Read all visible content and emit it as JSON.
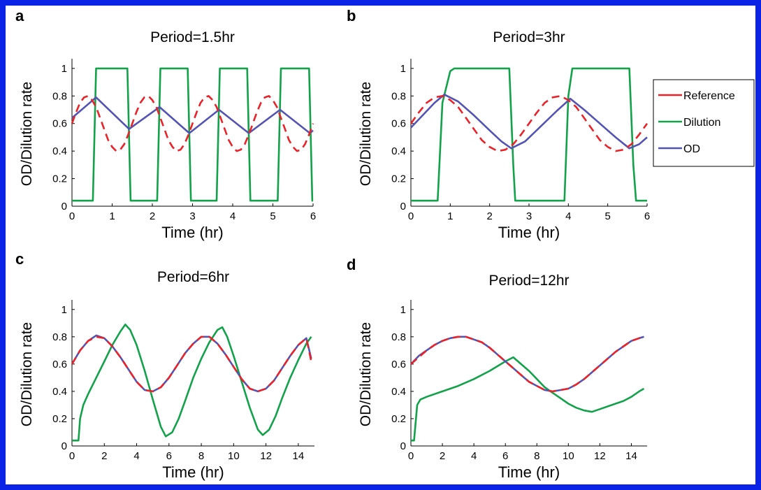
{
  "colors": {
    "border": "#0b23e6",
    "reference": "#e8232a",
    "dilution": "#12a24a",
    "od": "#5353b3"
  },
  "legend": [
    {
      "name": "Reference",
      "color": "#e8232a",
      "dashed": false
    },
    {
      "name": "Dilution",
      "color": "#12a24a",
      "dashed": false
    },
    {
      "name": "OD",
      "color": "#5353b3",
      "dashed": false
    }
  ],
  "chart_data": [
    {
      "letter": "a",
      "title": "Period=1.5hr",
      "type": "line",
      "xlabel": "Time  (hr)",
      "ylabel": "OD/Dilution rate",
      "xlim": [
        0,
        6
      ],
      "ylim": [
        0,
        1.05
      ],
      "xticks": [
        0,
        1,
        2,
        3,
        4,
        5,
        6
      ],
      "yticks": [
        0,
        0.2,
        0.4,
        0.6,
        0.8,
        1
      ],
      "series": [
        {
          "name": "Reference",
          "style": "dashed",
          "x": [
            0,
            0.1,
            0.2,
            0.3,
            0.4,
            0.5,
            0.6,
            0.7,
            0.8,
            0.9,
            1,
            1.1,
            1.2,
            1.3,
            1.4,
            1.5,
            1.6,
            1.7,
            1.8,
            1.9,
            2,
            2.1,
            2.2,
            2.3,
            2.4,
            2.5,
            2.6,
            2.7,
            2.8,
            2.9,
            3,
            3.1,
            3.2,
            3.3,
            3.4,
            3.5,
            3.6,
            3.7,
            3.8,
            3.9,
            4,
            4.1,
            4.2,
            4.3,
            4.4,
            4.5,
            4.6,
            4.7,
            4.8,
            4.9,
            5,
            5.1,
            5.2,
            5.3,
            5.4,
            5.5,
            5.6,
            5.7,
            5.8,
            5.9,
            6
          ],
          "y": [
            0.6,
            0.68,
            0.75,
            0.79,
            0.8,
            0.77,
            0.72,
            0.64,
            0.56,
            0.48,
            0.43,
            0.4,
            0.41,
            0.45,
            0.52,
            0.6,
            0.68,
            0.75,
            0.79,
            0.8,
            0.77,
            0.72,
            0.64,
            0.56,
            0.48,
            0.43,
            0.4,
            0.41,
            0.45,
            0.52,
            0.6,
            0.68,
            0.75,
            0.79,
            0.8,
            0.77,
            0.72,
            0.64,
            0.56,
            0.48,
            0.43,
            0.4,
            0.41,
            0.45,
            0.52,
            0.6,
            0.68,
            0.75,
            0.79,
            0.8,
            0.77,
            0.72,
            0.64,
            0.56,
            0.48,
            0.43,
            0.4,
            0.41,
            0.45,
            0.52,
            0.6
          ]
        },
        {
          "name": "Dilution",
          "style": "solid",
          "x": [
            0,
            0.52,
            0.6,
            1.38,
            1.46,
            2.12,
            2.2,
            2.88,
            2.96,
            3.6,
            3.68,
            4.36,
            4.44,
            5.12,
            5.2,
            5.9,
            5.98,
            6
          ],
          "y": [
            0.04,
            0.04,
            1,
            1,
            0.04,
            0.04,
            1,
            1,
            0.04,
            0.04,
            1,
            1,
            0.04,
            0.04,
            1,
            1,
            0.04,
            0.04
          ]
        },
        {
          "name": "OD",
          "style": "solid",
          "x": [
            0,
            0.6,
            1.42,
            2.18,
            2.92,
            3.66,
            4.4,
            5.18,
            5.92,
            6
          ],
          "y": [
            0.64,
            0.79,
            0.56,
            0.72,
            0.53,
            0.7,
            0.53,
            0.7,
            0.53,
            0.55
          ]
        }
      ]
    },
    {
      "letter": "b",
      "title": "Period=3hr",
      "type": "line",
      "xlabel": "Time  (hr)",
      "ylabel": "OD/Dilution rate",
      "xlim": [
        0,
        6
      ],
      "ylim": [
        0,
        1.05
      ],
      "xticks": [
        0,
        1,
        2,
        3,
        4,
        5,
        6
      ],
      "yticks": [
        0,
        0.2,
        0.4,
        0.6,
        0.8,
        1
      ],
      "series": [
        {
          "name": "Reference",
          "style": "dashed",
          "x": [
            0,
            0.2,
            0.4,
            0.6,
            0.8,
            1,
            1.2,
            1.4,
            1.6,
            1.8,
            2,
            2.2,
            2.4,
            2.6,
            2.8,
            3,
            3.2,
            3.4,
            3.6,
            3.8,
            4,
            4.2,
            4.4,
            4.6,
            4.8,
            5,
            5.2,
            5.4,
            5.6,
            5.8,
            6
          ],
          "y": [
            0.6,
            0.68,
            0.75,
            0.79,
            0.8,
            0.77,
            0.72,
            0.64,
            0.56,
            0.48,
            0.43,
            0.4,
            0.41,
            0.45,
            0.52,
            0.6,
            0.68,
            0.75,
            0.79,
            0.8,
            0.77,
            0.72,
            0.64,
            0.56,
            0.48,
            0.43,
            0.4,
            0.41,
            0.45,
            0.52,
            0.6
          ]
        },
        {
          "name": "Dilution",
          "style": "solid",
          "x": [
            0,
            0.68,
            0.8,
            1,
            1.1,
            2.5,
            2.6,
            2.65,
            3.9,
            4,
            4.1,
            5.55,
            5.65,
            5.72,
            6
          ],
          "y": [
            0.04,
            0.04,
            0.75,
            0.98,
            1,
            1,
            0.3,
            0.04,
            0.04,
            0.8,
            1,
            1,
            0.3,
            0.04,
            0.04
          ]
        },
        {
          "name": "OD",
          "style": "solid",
          "x": [
            0,
            0.3,
            0.6,
            0.85,
            1.2,
            1.6,
            2,
            2.3,
            2.55,
            2.9,
            3.3,
            3.7,
            4.05,
            4.4,
            4.8,
            5.2,
            5.55,
            5.8,
            6
          ],
          "y": [
            0.57,
            0.66,
            0.75,
            0.81,
            0.76,
            0.66,
            0.55,
            0.47,
            0.42,
            0.47,
            0.58,
            0.69,
            0.78,
            0.7,
            0.6,
            0.5,
            0.42,
            0.45,
            0.5
          ]
        }
      ]
    },
    {
      "letter": "c",
      "title": "Period=6hr",
      "type": "line",
      "xlabel": "Time  (hr)",
      "ylabel": "OD/Dilution rate",
      "xlim": [
        0,
        15
      ],
      "ylim": [
        0,
        1.05
      ],
      "xticks": [
        0,
        2,
        4,
        6,
        8,
        10,
        12,
        14
      ],
      "yticks": [
        0,
        0.2,
        0.4,
        0.6,
        0.8,
        1
      ],
      "series": [
        {
          "name": "Reference",
          "style": "dashed",
          "x": [
            0,
            0.5,
            1,
            1.5,
            2,
            2.5,
            3,
            3.5,
            4,
            4.5,
            5,
            5.5,
            6,
            6.5,
            7,
            7.5,
            8,
            8.5,
            9,
            9.5,
            10,
            10.5,
            11,
            11.5,
            12,
            12.5,
            13,
            13.5,
            14,
            14.5,
            14.8
          ],
          "y": [
            0.6,
            0.7,
            0.77,
            0.8,
            0.79,
            0.73,
            0.65,
            0.56,
            0.47,
            0.41,
            0.4,
            0.43,
            0.5,
            0.59,
            0.68,
            0.75,
            0.8,
            0.8,
            0.75,
            0.67,
            0.58,
            0.49,
            0.42,
            0.4,
            0.42,
            0.48,
            0.57,
            0.66,
            0.74,
            0.79,
            0.62
          ]
        },
        {
          "name": "Dilution",
          "style": "solid",
          "x": [
            0,
            0.4,
            0.5,
            0.7,
            1,
            1.5,
            2,
            2.5,
            3,
            3.3,
            3.6,
            4,
            4.5,
            5,
            5.5,
            5.8,
            6.2,
            6.6,
            7,
            7.5,
            8,
            8.5,
            9,
            9.3,
            9.6,
            10,
            10.5,
            11,
            11.5,
            11.8,
            12.2,
            12.6,
            13,
            13.5,
            14,
            14.5,
            14.8
          ],
          "y": [
            0.04,
            0.04,
            0.2,
            0.3,
            0.38,
            0.5,
            0.62,
            0.74,
            0.84,
            0.89,
            0.85,
            0.74,
            0.55,
            0.34,
            0.14,
            0.07,
            0.1,
            0.2,
            0.33,
            0.5,
            0.64,
            0.76,
            0.85,
            0.87,
            0.8,
            0.66,
            0.47,
            0.28,
            0.12,
            0.08,
            0.12,
            0.22,
            0.35,
            0.5,
            0.63,
            0.75,
            0.8
          ]
        },
        {
          "name": "OD",
          "style": "solid",
          "x": [
            0,
            0.5,
            1,
            1.5,
            2,
            2.5,
            3,
            3.5,
            4,
            4.5,
            5,
            5.5,
            6,
            6.5,
            7,
            7.5,
            8,
            8.5,
            9,
            9.5,
            10,
            10.5,
            11,
            11.5,
            12,
            12.5,
            13,
            13.5,
            14,
            14.5,
            14.8
          ],
          "y": [
            0.6,
            0.7,
            0.77,
            0.81,
            0.79,
            0.73,
            0.65,
            0.56,
            0.47,
            0.41,
            0.4,
            0.43,
            0.5,
            0.59,
            0.68,
            0.75,
            0.8,
            0.8,
            0.75,
            0.67,
            0.58,
            0.49,
            0.42,
            0.4,
            0.42,
            0.48,
            0.57,
            0.66,
            0.74,
            0.79,
            0.64
          ]
        }
      ]
    },
    {
      "letter": "d",
      "title": "Period=12hr",
      "type": "line",
      "xlabel": "Time  (hr)",
      "ylabel": "OD/Dilution rate",
      "xlim": [
        0,
        15
      ],
      "ylim": [
        0,
        1.05
      ],
      "xticks": [
        0,
        2,
        4,
        6,
        8,
        10,
        12,
        14
      ],
      "yticks": [
        0,
        0.2,
        0.4,
        0.6,
        0.8,
        1
      ],
      "series": [
        {
          "name": "Reference",
          "style": "dashed",
          "x": [
            0,
            0.5,
            1,
            1.5,
            2,
            2.5,
            3,
            3.5,
            4,
            4.5,
            5,
            5.5,
            6,
            6.5,
            7,
            7.5,
            8,
            8.5,
            9,
            9.5,
            10,
            10.5,
            11,
            11.5,
            12,
            12.5,
            13,
            13.5,
            14,
            14.5,
            14.8
          ],
          "y": [
            0.6,
            0.65,
            0.7,
            0.74,
            0.77,
            0.79,
            0.8,
            0.8,
            0.78,
            0.76,
            0.72,
            0.67,
            0.62,
            0.57,
            0.52,
            0.47,
            0.44,
            0.41,
            0.4,
            0.41,
            0.42,
            0.45,
            0.49,
            0.54,
            0.59,
            0.64,
            0.69,
            0.73,
            0.77,
            0.79,
            0.8
          ]
        },
        {
          "name": "Dilution",
          "style": "solid",
          "x": [
            0,
            0.2,
            0.4,
            0.6,
            1,
            2,
            3,
            4,
            5,
            6,
            6.5,
            7,
            7.5,
            8,
            8.5,
            9,
            9.5,
            10,
            10.5,
            11,
            11.5,
            12,
            12.5,
            13,
            13.5,
            14,
            14.5,
            14.8
          ],
          "y": [
            0.04,
            0.04,
            0.3,
            0.34,
            0.36,
            0.4,
            0.44,
            0.49,
            0.55,
            0.62,
            0.65,
            0.6,
            0.55,
            0.49,
            0.43,
            0.39,
            0.35,
            0.31,
            0.28,
            0.26,
            0.25,
            0.27,
            0.29,
            0.31,
            0.33,
            0.36,
            0.4,
            0.42
          ]
        },
        {
          "name": "OD",
          "style": "solid",
          "x": [
            0,
            0.5,
            1,
            1.5,
            2,
            2.5,
            3,
            3.5,
            4,
            4.5,
            5,
            5.5,
            6,
            6.5,
            7,
            7.5,
            8,
            8.5,
            9,
            9.5,
            10,
            10.5,
            11,
            11.5,
            12,
            12.5,
            13,
            13.5,
            14,
            14.5,
            14.8
          ],
          "y": [
            0.6,
            0.66,
            0.7,
            0.74,
            0.77,
            0.79,
            0.8,
            0.8,
            0.78,
            0.76,
            0.72,
            0.67,
            0.62,
            0.57,
            0.52,
            0.47,
            0.44,
            0.41,
            0.4,
            0.41,
            0.42,
            0.45,
            0.49,
            0.54,
            0.59,
            0.64,
            0.69,
            0.73,
            0.77,
            0.79,
            0.8
          ]
        }
      ]
    }
  ]
}
